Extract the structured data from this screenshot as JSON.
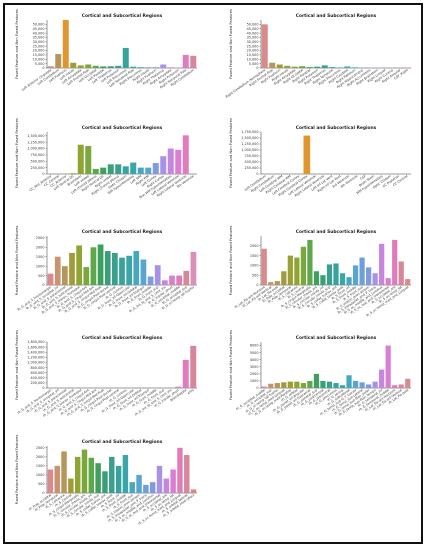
{
  "figure_title": "",
  "chart_data": [
    {
      "type": "bar",
      "title": "Cortical and Subcortical Regions",
      "ylabel": "Fused Feature and Non Fused Features",
      "ylim": [
        0,
        55000
      ],
      "yticks": [
        0,
        5000,
        10000,
        15000,
        20000,
        25000,
        30000,
        35000,
        40000,
        45000,
        50000
      ],
      "ytick_labels": [
        "0",
        "5,000",
        "10,000",
        "15,000",
        "20,000",
        "25,000",
        "30,000",
        "35,000",
        "40,000",
        "45,000",
        "50,000"
      ],
      "categories": [
        "Left Anterior cingulate",
        "Left Cerebellum",
        "Left Fusiform",
        "Left Insula",
        "Left Amygdala",
        "Left Frontal Pole",
        "Left Occipital",
        "Left Parietal",
        "Left Thalamus",
        "Left Putamen",
        "Left Precuneus",
        "Left Temporal Pole",
        "Right Precuneus",
        "Right Insula",
        "Right Fusiform",
        "Right Thalamus",
        "Right Amygdala",
        "Right Putamen",
        "Right Temporal Pole",
        "Right Cerebellum"
      ],
      "values": [
        2000,
        16000,
        55000,
        6000,
        3000,
        4000,
        2500,
        1800,
        2000,
        2500,
        23000,
        1500,
        1000,
        800,
        900,
        4000,
        800,
        600,
        15000,
        14000
      ],
      "colors": [
        "#d98b8b",
        "#b5975a",
        "#e0962e",
        "#a39a3a",
        "#8fa533",
        "#7aa83a",
        "#5da84a",
        "#3f9f5c",
        "#3a9e78",
        "#38a08c",
        "#36a39d",
        "#3aa6ac",
        "#45a8bd",
        "#5aa4d2",
        "#7f9be0",
        "#a892e6",
        "#c685e0",
        "#da7fcf",
        "#e07cbb",
        "#d8879a"
      ]
    },
    {
      "type": "bar",
      "title": "Cortical and Subcortical Regions",
      "ylabel": "Fused Feature and Non Fused Features",
      "ylim": [
        0,
        55000
      ],
      "yticks": [
        0,
        5000,
        10000,
        15000,
        20000,
        25000,
        30000,
        35000,
        40000,
        45000,
        50000
      ],
      "ytick_labels": [
        "0",
        "5,000",
        "10,000",
        "15,000",
        "20,000",
        "25,000",
        "30,000",
        "35,000",
        "40,000",
        "45,000",
        "50,000"
      ],
      "categories": [
        "Right Cerebellum Hemisphere",
        "Right Frontal Pole",
        "Right Fusiform",
        "Right Insula",
        "Right Amygdala",
        "Right Occipital",
        "Right Parietal",
        "Right Putamen",
        "Right Thalamus",
        "Right Temporal",
        "Right Precuneus",
        "Right Caudate",
        "Right Pallidum",
        "Right Hippocampus",
        "Right Accumbens",
        "Right Brainstem",
        "Right Lingual",
        "Right Cuneus",
        "Right Angular",
        "CSF_Right"
      ],
      "values": [
        50000,
        6000,
        4000,
        2500,
        1500,
        2000,
        1000,
        1500,
        3000,
        1000,
        500,
        1800,
        800,
        600,
        500,
        400,
        300,
        200,
        300,
        500
      ],
      "colors": [
        "#d98b8b",
        "#b5975a",
        "#a39a3a",
        "#8fa533",
        "#7aa83a",
        "#5da84a",
        "#3f9f5c",
        "#3a9e78",
        "#38a08c",
        "#36a39d",
        "#3aa6ac",
        "#45a8bd",
        "#5aa4d2",
        "#7f9be0",
        "#a892e6",
        "#c685e0",
        "#da7fcf",
        "#e07cbb",
        "#d8879a",
        "#d8879a"
      ]
    },
    {
      "type": "bar",
      "title": "Cortical and Subcortical Regions",
      "ylabel": "Fused Feature and Non Fused Features",
      "ylim": [
        0,
        1650000
      ],
      "yticks": [
        0,
        250000,
        500000,
        750000,
        1000000,
        1250000,
        1500000
      ],
      "ytick_labels": [
        "0",
        "250,000",
        "500,000",
        "750,000",
        "1,000,000",
        "1,250,000",
        "1,500,000"
      ],
      "categories": [
        "CC_Mid_Anterior",
        "CC_Central",
        "CC_Anterior",
        "Left Ventral DC",
        "Brainstem",
        "Left vessel",
        "Left choroid plexus",
        "Right Ventral DC",
        "Right vessel",
        "Right choroid plexus",
        "Optic Chiasm",
        "WM hypointensities",
        "Left WM",
        "Right WM",
        "Left Cortex",
        "Right Cortex",
        "Non WM hypointensities",
        "Left Lateral Ventricle",
        "Right Lateral Ventricle",
        "5th Ventricle"
      ],
      "values": [
        0,
        0,
        20000,
        30000,
        1150000,
        1100000,
        200000,
        250000,
        380000,
        380000,
        300000,
        450000,
        250000,
        250000,
        430000,
        700000,
        1000000,
        950000,
        1520000,
        0
      ],
      "colors": [
        "#d98b8b",
        "#c99270",
        "#b5975a",
        "#a39a3a",
        "#8fa533",
        "#7aa83a",
        "#5da84a",
        "#3f9f5c",
        "#3a9e78",
        "#38a08c",
        "#36a39d",
        "#3aa6ac",
        "#45a8bd",
        "#5aa4d2",
        "#7f9be0",
        "#a892e6",
        "#c685e0",
        "#da7fcf",
        "#e07cbb",
        "#d8879a"
      ]
    },
    {
      "type": "bar",
      "title": "Cortical and Subcortical Regions",
      "ylabel": "Fused Feature and Non Fused Features",
      "ylim": [
        0,
        1750000
      ],
      "yticks": [
        0,
        250000,
        500000,
        750000,
        1000000,
        1250000,
        1500000,
        1750000
      ],
      "ytick_labels": [
        "0",
        "250,000",
        "500,000",
        "750,000",
        "1,000,000",
        "1,250,000",
        "1,500,000",
        "1,750,000"
      ],
      "categories": [
        "Left Cerebellum",
        "Right Cerebellum",
        "Left Cerebral WM",
        "Right Cerebral WM",
        "Left Cerebral Cortex",
        "Right Cerebral Cortex",
        "Left Lateral Ventricle",
        "Right Lateral Ventricle",
        "Left Inf Lat Vent",
        "Right Inf Lat Vent",
        "3rd Ventricle",
        "4th Ventricle",
        "CSF",
        "Brain Stem",
        "WM hypointensities",
        "Optic Chiasm",
        "CC Posterior",
        "CC Central"
      ],
      "values": [
        0,
        0,
        0,
        0,
        0,
        1600000,
        0,
        0,
        0,
        0,
        0,
        0,
        0,
        0,
        0,
        0,
        0,
        0
      ],
      "colors": [
        "#d98b8b",
        "#c99270",
        "#b5975a",
        "#a39a3a",
        "#8fa533",
        "#e0962e",
        "#5da84a",
        "#3f9f5c",
        "#3a9e78",
        "#38a08c",
        "#36a39d",
        "#3aa6ac",
        "#45a8bd",
        "#5aa4d2",
        "#7f9be0",
        "#a892e6",
        "#c685e0",
        "#da7fcf"
      ]
    },
    {
      "type": "bar",
      "title": "Cortical and Subcortical Regions",
      "ylabel": "Fused Feature and Non Fused Features",
      "ylim": [
        0,
        2600
      ],
      "yticks": [
        0,
        500,
        1000,
        1500,
        2000,
        2500
      ],
      "ytick_labels": [
        "0",
        "500",
        "1000",
        "1500",
        "2000",
        "2500"
      ],
      "categories": [
        "lh_G_and_S_frontomargin",
        "lh_G_and_S_occipital_inf",
        "lh_G_and_S_paracentral",
        "lh_G_and_S_subcentral",
        "lh_G_and_S_transv_frontopol",
        "lh_G_and_S_cingul-Ant",
        "lh_G_and_S_cingul-Mid-Ant",
        "lh_G_and_S_cingul-Mid-Post",
        "lh_G_cingul-Post-dorsal",
        "lh_G_cingul-Post-ventral",
        "lh_G_cuneus",
        "lh_G_front_inf-Opercular",
        "lh_G_front_inf-Orbital",
        "lh_G_front_inf-Triangul",
        "lh_G_front_middle",
        "lh_G_front_sup",
        "lh_G_Ins_lg_and_S_cent_ins",
        "lh_G_insular_short",
        "lh_G_occipital_middle",
        "lh_G_occipital_sup",
        "lh_G_oc-temp_lat-fusifor"
      ],
      "values": [
        600,
        1500,
        1000,
        1700,
        2100,
        950,
        2000,
        2150,
        1800,
        1700,
        1450,
        1550,
        1800,
        1350,
        450,
        1050,
        250,
        500,
        500,
        750,
        1750
      ],
      "colors": [
        "#d98b8b",
        "#c99270",
        "#b5975a",
        "#a39a3a",
        "#8fa533",
        "#7aa83a",
        "#5da84a",
        "#3f9f5c",
        "#3a9e78",
        "#38a08c",
        "#36a39d",
        "#3aa6ac",
        "#45a8bd",
        "#5aa4d2",
        "#7f9be0",
        "#a892e6",
        "#c685e0",
        "#da7fcf",
        "#e07cbb",
        "#d8879a",
        "#d98fb8"
      ]
    },
    {
      "type": "bar",
      "title": "Cortical and Subcortical Regions",
      "ylabel": "Fused Feature and Non Fused Features",
      "ylim": [
        0,
        2500
      ],
      "yticks": [
        0,
        500,
        1000,
        1500,
        2000
      ],
      "ytick_labels": [
        "0",
        "500",
        "1000",
        "1500",
        "2000"
      ],
      "categories": [
        "lh_Lat_Fis-ant-Horizont",
        "lh_Lat_Fis-ant-Vertical",
        "lh_Lat_Fis-post",
        "lh_Pole_occipital",
        "lh_Pole_temporal",
        "lh_S_calcarine",
        "lh_S_central",
        "lh_S_cingul-Marginalis",
        "lh_S_circular_insula_ant",
        "lh_S_circular_insula_inf",
        "lh_S_circular_insula_sup",
        "lh_S_collat_transv_ant",
        "lh_S_collat_transv_post",
        "lh_S_front_inf",
        "lh_S_front_middle",
        "lh_S_front_sup",
        "lh_S_interm_prim-Jensen",
        "lh_S_intrapariet_and_P_trans",
        "lh_S_oc_middle_and_Lunatus",
        "lh_S_oc_sup_and_transversal",
        "lh_S_occipital_ant",
        "lh_S_oc-temp_lat",
        "lh_S_oc-temp_med_and_Lingual"
      ],
      "values": [
        1850,
        150,
        200,
        700,
        1500,
        1400,
        1950,
        2300,
        700,
        500,
        1050,
        1100,
        600,
        400,
        1000,
        1400,
        900,
        600,
        2100,
        350,
        2300,
        1200,
        300
      ],
      "colors": [
        "#d98b8b",
        "#c99270",
        "#b5975a",
        "#a39a3a",
        "#9aa035",
        "#8fa533",
        "#7aa83a",
        "#5da84a",
        "#3f9f5c",
        "#3a9e78",
        "#38a08c",
        "#36a39d",
        "#3aa6ac",
        "#45a8bd",
        "#5aa4d2",
        "#6e9fdc",
        "#7f9be0",
        "#a892e6",
        "#c685e0",
        "#da7fcf",
        "#e07cbb",
        "#d8879a",
        "#d98b8b"
      ]
    },
    {
      "type": "bar",
      "title": "Cortical and Subcortical Regions",
      "ylabel": "Fused Feature and Non Fused Features",
      "ylim": [
        0,
        1800000
      ],
      "yticks": [
        0,
        200000,
        400000,
        600000,
        800000,
        1000000,
        1200000,
        1400000,
        1600000,
        1800000
      ],
      "ytick_labels": [
        "0",
        "200,000",
        "400,000",
        "600,000",
        "800,000",
        "1,000,000",
        "1,200,000",
        "1,400,000",
        "1,600,000",
        "1,800,000"
      ],
      "categories": [
        "rh_G_and_S_frontomargin",
        "rh_G_and_S_occipital_inf",
        "rh_G_and_S_paracentral",
        "rh_G_and_S_subcentral",
        "rh_G_and_S_transv_frontopol",
        "rh_G_and_S_cingul-Ant",
        "rh_G_and_S_cingul-Mid-Ant",
        "rh_G_and_S_cingul-Mid-Post",
        "rh_G_cingul-Post-dorsal",
        "rh_G_cingul-Post-ventral",
        "rh_G_cuneus",
        "rh_G_front_inf-Opercular",
        "rh_G_front_inf-Orbital",
        "rh_G_front_inf-Triangul",
        "rh_G_front_middle",
        "rh_G_front_sup",
        "rh_G_Ins_lg_and_S_cent_ins",
        "rh_G_insular_short",
        "BrainSegVol",
        "eTIV"
      ],
      "values": [
        0,
        0,
        0,
        0,
        0,
        0,
        0,
        0,
        0,
        0,
        0,
        0,
        0,
        0,
        0,
        0,
        0,
        50000,
        1100000,
        1650000
      ],
      "colors": [
        "#d98b8b",
        "#c99270",
        "#b5975a",
        "#a39a3a",
        "#8fa533",
        "#7aa83a",
        "#5da84a",
        "#3f9f5c",
        "#3a9e78",
        "#38a08c",
        "#36a39d",
        "#3aa6ac",
        "#45a8bd",
        "#5aa4d2",
        "#7f9be0",
        "#a892e6",
        "#c685e0",
        "#da7fcf",
        "#e07cbb",
        "#d8879a"
      ]
    },
    {
      "type": "bar",
      "title": "Cortical and Subcortical Regions",
      "ylabel": "Fused Feature and Non Fused Features",
      "ylim": [
        0,
        6500
      ],
      "yticks": [
        0,
        1000,
        2000,
        3000,
        4000,
        5000,
        6000
      ],
      "ytick_labels": [
        "0",
        "1000",
        "2000",
        "3000",
        "4000",
        "5000",
        "6000"
      ],
      "categories": [
        "rh_G_occipital_middle",
        "rh_G_occipital_sup",
        "rh_G_oc-temp_lat-fusifor",
        "rh_G_oc-temp_med-Lingual",
        "rh_G_oc-temp_med-Parahip",
        "rh_G_orbital",
        "rh_G_pariet_inf-Angular",
        "rh_G_pariet_inf-Supramar",
        "rh_G_parietal_sup",
        "rh_G_postcentral",
        "rh_G_precentral",
        "rh_G_precuneus",
        "rh_G_rectus",
        "rh_G_subcallosal",
        "rh_G_temp_sup-G_T_transv",
        "rh_G_temp_sup-Lateral",
        "rh_G_temp_sup-Plan_polar",
        "rh_G_temp_sup-Plan_tempo",
        "rh_G_temporal_inf",
        "rh_G_temporal_middle",
        "rh_Lat_Fis-ant-Horizont",
        "rh_Lat_Fis-ant-Vertical",
        "rh_Lat_Fis-post"
      ],
      "values": [
        200,
        600,
        700,
        800,
        900,
        900,
        700,
        1000,
        2000,
        1000,
        900,
        700,
        400,
        1800,
        1000,
        800,
        500,
        900,
        2600,
        6000,
        400,
        500,
        1300
      ],
      "colors": [
        "#d98b8b",
        "#c99270",
        "#b5975a",
        "#a39a3a",
        "#9aa035",
        "#8fa533",
        "#7aa83a",
        "#5da84a",
        "#3f9f5c",
        "#3a9e78",
        "#38a08c",
        "#36a39d",
        "#3aa6ac",
        "#45a8bd",
        "#5aa4d2",
        "#6e9fdc",
        "#7f9be0",
        "#a892e6",
        "#c685e0",
        "#da7fcf",
        "#e07cbb",
        "#d8879a",
        "#d98b8b"
      ]
    },
    {
      "type": "bar",
      "title": "Cortical and Subcortical Regions",
      "ylabel": "Fused Feature and Non Fused Features",
      "ylim": [
        0,
        2600
      ],
      "yticks": [
        0,
        500,
        1000,
        1500,
        2000,
        2500
      ],
      "ytick_labels": [
        "0",
        "500",
        "1000",
        "1500",
        "2000",
        "2500"
      ],
      "categories": [
        "rh_Pole_occipital",
        "rh_Pole_temporal",
        "rh_S_calcarine",
        "rh_S_central",
        "rh_S_cingul-Marginalis",
        "rh_S_circular_insula_ant",
        "rh_S_circular_insula_inf",
        "rh_S_circular_insula_sup",
        "rh_S_collat_transv_ant",
        "rh_S_collat_transv_post",
        "rh_S_front_inf",
        "rh_S_front_middle",
        "rh_S_front_sup",
        "rh_S_interm_prim-Jensen",
        "rh_S_intrapariet_and_P_trans",
        "rh_S_oc_middle_and_Lunatus",
        "rh_S_oc_sup_and_transversal",
        "rh_S_occipital_ant",
        "rh_S_oc-temp_lat",
        "rh_S_oc-temp_med_and_Lingual",
        "rh_S_orbital_lateral",
        "rh_S_orbital_med-olfact"
      ],
      "values": [
        1300,
        1500,
        2300,
        800,
        2000,
        2400,
        1950,
        1650,
        1200,
        2000,
        1500,
        2100,
        600,
        1000,
        450,
        600,
        1500,
        800,
        1300,
        2500,
        2100,
        200
      ],
      "colors": [
        "#d98b8b",
        "#c99270",
        "#b5975a",
        "#a39a3a",
        "#8fa533",
        "#7aa83a",
        "#5da84a",
        "#3f9f5c",
        "#3a9e78",
        "#38a08c",
        "#36a39d",
        "#3aa6ac",
        "#45a8bd",
        "#5aa4d2",
        "#6e9fdc",
        "#7f9be0",
        "#a892e6",
        "#c685e0",
        "#da7fcf",
        "#e07cbb",
        "#d8879a",
        "#d98b8b"
      ]
    }
  ]
}
